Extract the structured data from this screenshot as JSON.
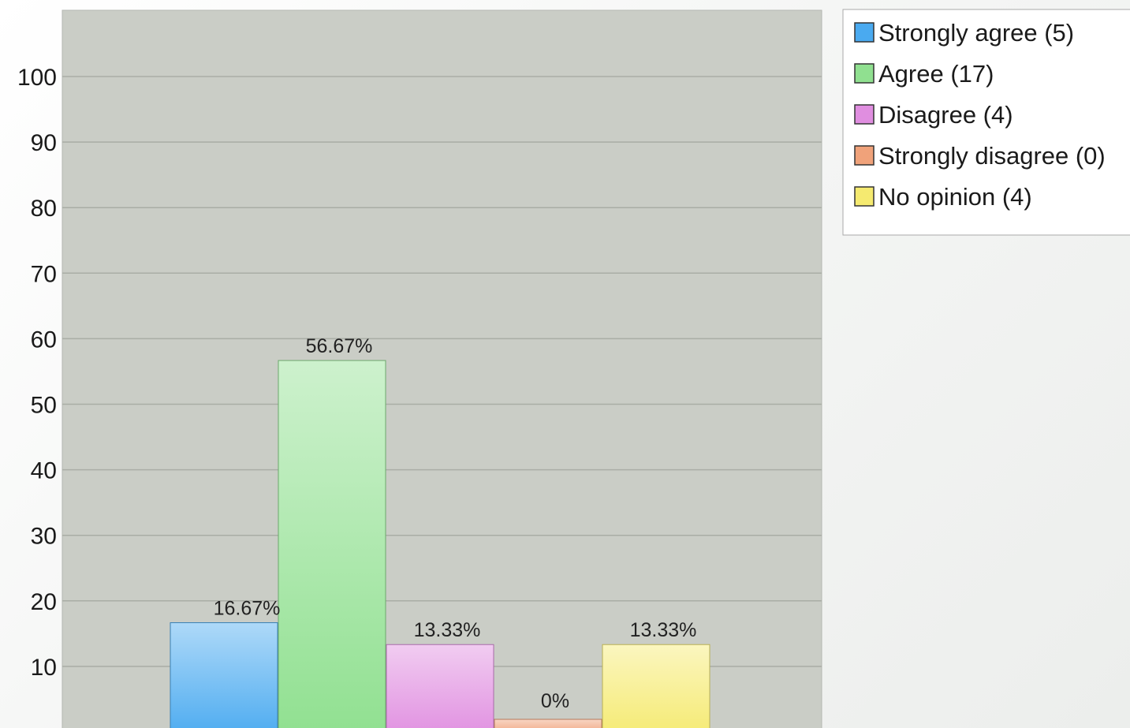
{
  "chart_data": {
    "type": "bar",
    "categories": [
      "Strongly agree (5)",
      "Agree (17)",
      "Disagree (4)",
      "Strongly disagree (0)",
      "No opinion (4)"
    ],
    "values": [
      16.67,
      56.67,
      13.33,
      0,
      13.33
    ],
    "value_labels": [
      "16.67%",
      "56.67%",
      "13.33%",
      "0%",
      "13.33%"
    ],
    "colors": [
      "#4aaaf0",
      "#90e090",
      "#e08ee0",
      "#f0a27a",
      "#f5ea70"
    ],
    "yticks": [
      "10",
      "20",
      "30",
      "40",
      "50",
      "60",
      "70",
      "80",
      "90",
      "100"
    ],
    "ylim": [
      0,
      110
    ],
    "grid": true,
    "legend": {
      "placement": "top-right",
      "entries": [
        "Strongly agree (5)",
        "Agree (17)",
        "Disagree (4)",
        "Strongly disagree (0)",
        "No opinion (4)"
      ]
    },
    "title": "",
    "xlabel": "",
    "ylabel": ""
  }
}
